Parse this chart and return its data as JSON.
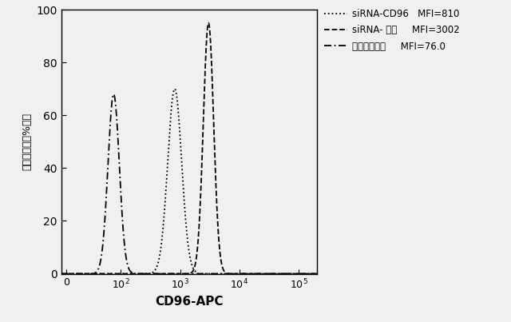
{
  "title": "",
  "xlabel": "CD96-APC",
  "ylabel": "最大に対する%割合",
  "ylim": [
    0,
    100
  ],
  "yticks": [
    0,
    20,
    40,
    60,
    80,
    100
  ],
  "curve1_label": "siRNA-CD96   MFI=810",
  "curve2_label": "siRNA- 対照     MFI=3002",
  "curve3_label": "アイソタイプ     MFI=76.0",
  "curve1_mfi": 810,
  "curve1_sigma": 0.27,
  "curve1_peak": 70,
  "curve2_mfi": 3002,
  "curve2_sigma": 0.2,
  "curve2_peak": 95,
  "curve3_mfi": 76,
  "curve3_sigma": 0.22,
  "curve3_peak": 68,
  "background_color": "#f0f0f0",
  "line_color": "#000000",
  "font_size": 9
}
